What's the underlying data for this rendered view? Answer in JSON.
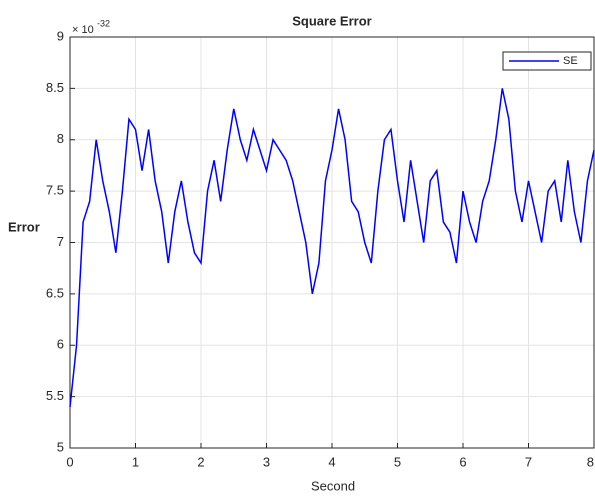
{
  "chart_data": {
    "type": "line",
    "title": "Square Error",
    "xlabel": "Second",
    "ylabel": "Error",
    "exponent_base": "× 10",
    "exponent": "-32",
    "x": [
      0,
      0.1,
      0.2,
      0.3,
      0.4,
      0.5,
      0.6,
      0.7,
      0.8,
      0.9,
      1,
      1.1,
      1.2,
      1.3,
      1.4,
      1.5,
      1.6,
      1.7,
      1.8,
      1.9,
      2,
      2.1,
      2.2,
      2.3,
      2.4,
      2.5,
      2.6,
      2.7,
      2.8,
      2.9,
      3,
      3.1,
      3.2,
      3.3,
      3.4,
      3.5,
      3.6,
      3.7,
      3.8,
      3.9,
      4,
      4.1,
      4.2,
      4.3,
      4.4,
      4.5,
      4.6,
      4.7,
      4.8,
      4.9,
      5,
      5.1,
      5.2,
      5.3,
      5.4,
      5.5,
      5.6,
      5.7,
      5.8,
      5.9,
      6,
      6.1,
      6.2,
      6.3,
      6.4,
      6.5,
      6.6,
      6.7,
      6.8,
      6.9,
      7,
      7.1,
      7.2,
      7.3,
      7.4,
      7.5,
      7.6,
      7.7,
      7.8,
      7.9,
      8
    ],
    "series": [
      {
        "name": "SE",
        "color": "#0000ff",
        "values": [
          5.4,
          6.0,
          7.2,
          7.4,
          8.0,
          7.6,
          7.3,
          6.9,
          7.5,
          8.2,
          8.1,
          7.7,
          8.1,
          7.6,
          7.3,
          6.8,
          7.3,
          7.6,
          7.2,
          6.9,
          6.8,
          7.5,
          7.8,
          7.4,
          7.9,
          8.3,
          8.0,
          7.8,
          8.1,
          7.9,
          7.7,
          8.0,
          7.9,
          7.8,
          7.6,
          7.3,
          7.0,
          6.5,
          6.8,
          7.6,
          7.9,
          8.3,
          8.0,
          7.4,
          7.3,
          7.0,
          6.8,
          7.5,
          8.0,
          8.1,
          7.6,
          7.2,
          7.8,
          7.4,
          7.0,
          7.6,
          7.7,
          7.2,
          7.1,
          6.8,
          7.5,
          7.2,
          7.0,
          7.4,
          7.6,
          8.0,
          8.5,
          8.2,
          7.5,
          7.2,
          7.6,
          7.3,
          7.0,
          7.5,
          7.6,
          7.2,
          7.8,
          7.3,
          7.0,
          7.6,
          7.9
        ]
      }
    ],
    "xlim": [
      0,
      8
    ],
    "xticks": [
      0,
      1,
      2,
      3,
      4,
      5,
      6,
      7,
      8
    ],
    "ylim": [
      5,
      9
    ],
    "yticks": [
      5,
      5.5,
      6,
      6.5,
      7,
      7.5,
      8,
      8.5,
      9
    ],
    "grid": true,
    "legend": "northeast"
  }
}
